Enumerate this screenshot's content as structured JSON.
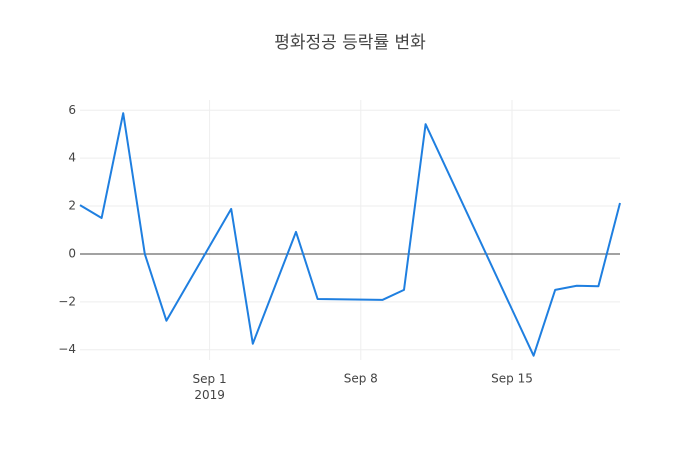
{
  "chart_data": {
    "type": "line",
    "title": "평화정공 등락률 변화",
    "x": [
      "2019-08-26",
      "2019-08-27",
      "2019-08-28",
      "2019-08-29",
      "2019-08-30",
      "2019-09-02",
      "2019-09-03",
      "2019-09-05",
      "2019-09-06",
      "2019-09-09",
      "2019-09-10",
      "2019-09-11",
      "2019-09-16",
      "2019-09-17",
      "2019-09-18",
      "2019-09-19",
      "2019-09-20"
    ],
    "series": [
      {
        "color": "#1f7fe0",
        "values": [
          2.04,
          1.5,
          5.88,
          0,
          -2.79,
          1.88,
          -3.75,
          0.92,
          -1.88,
          -1.92,
          -1.5,
          5.42,
          -4.25,
          -1.5,
          -1.33,
          -1.35,
          2.13
        ]
      }
    ],
    "xlim": [
      "2019-08-26",
      "2019-09-20"
    ],
    "xticks": [
      {
        "value": "2019-09-01",
        "label": "Sep 1\n2019"
      },
      {
        "value": "2019-09-08",
        "label": "Sep 8"
      },
      {
        "value": "2019-09-15",
        "label": "Sep 15"
      }
    ],
    "ylim": [
      -4.43,
      6.43
    ],
    "yticks": [
      {
        "value": -4,
        "label": "−4"
      },
      {
        "value": -2,
        "label": "−2"
      },
      0,
      2,
      4,
      6
    ],
    "grid": true,
    "zeroline": true
  }
}
